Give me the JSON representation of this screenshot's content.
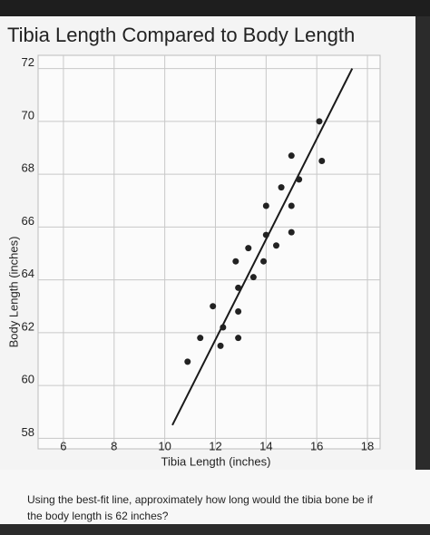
{
  "chart_data": {
    "type": "scatter",
    "title": "Tibia Length Compared to Body Length",
    "x_label": "Tibia Length (inches)",
    "y_label": "Body Length (inches)",
    "x": [
      10.9,
      11.4,
      12.2,
      12.3,
      12.9,
      12.9,
      11.9,
      12.9,
      13.5,
      12.8,
      13.3,
      13.9,
      14.4,
      14.0,
      15.0,
      14.0,
      15.0,
      14.6,
      15.3,
      15.0,
      16.2,
      16.1
    ],
    "values": [
      60.9,
      61.8,
      61.5,
      62.2,
      61.8,
      62.8,
      63.0,
      63.7,
      64.1,
      64.7,
      65.2,
      64.7,
      65.3,
      65.7,
      65.8,
      66.8,
      66.8,
      67.5,
      67.8,
      68.7,
      68.5,
      70.0
    ],
    "color": "#222222",
    "fit_line": {
      "x": [
        10.3,
        17.4
      ],
      "y": [
        58.5,
        72.0
      ]
    },
    "xlim": [
      5,
      18.5
    ],
    "xticks": [
      6,
      8,
      10,
      12,
      14,
      16,
      18
    ],
    "ylim": [
      57.6,
      72.5
    ],
    "yticks": [
      58,
      60,
      62,
      64,
      66,
      68,
      70,
      72
    ],
    "grid": true
  },
  "question": [
    "Using the best-fit line, approximately how long would the tibia bone be if",
    "the body length is 62 inches?"
  ]
}
